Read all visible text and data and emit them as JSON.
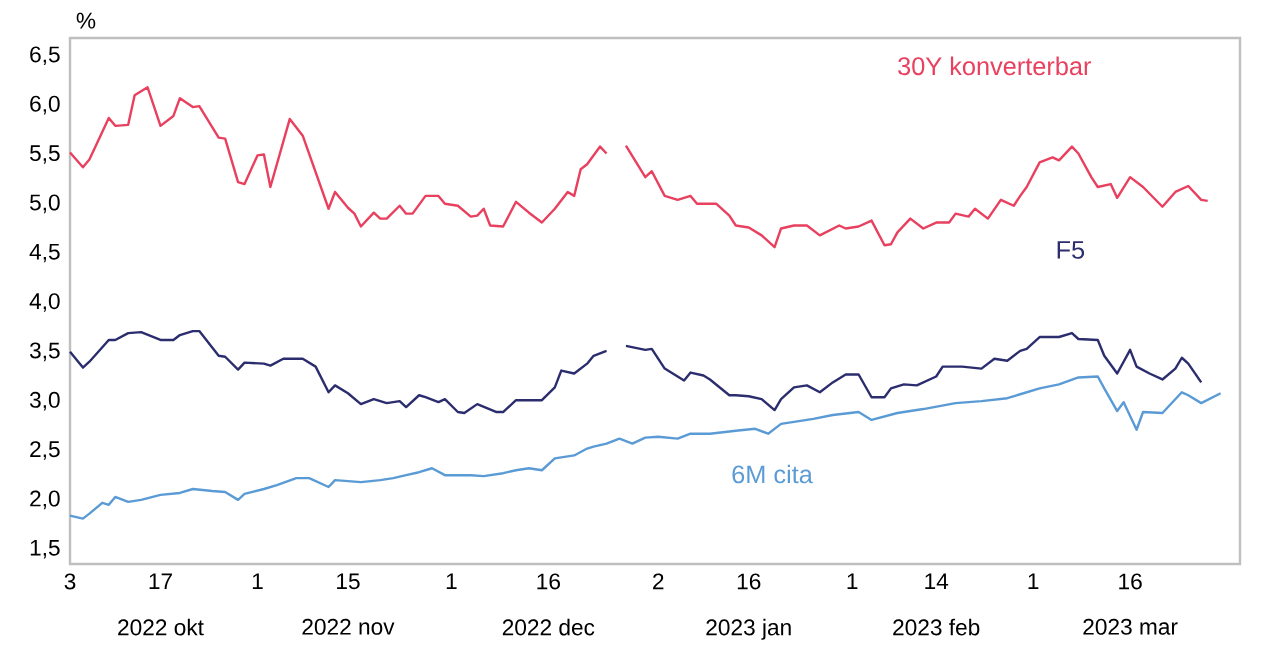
{
  "chart_data": {
    "type": "line",
    "ylabel": "%",
    "xlim": [
      "2022-10-03",
      "2023-04-02"
    ],
    "ylim": [
      1.35,
      6.68
    ],
    "xticks": [
      {
        "value": "2022-10-03",
        "label": "3"
      },
      {
        "value": "2022-10-17",
        "label": "17"
      },
      {
        "value": "2022-11-01",
        "label": "1"
      },
      {
        "value": "2022-11-15",
        "label": "15"
      },
      {
        "value": "2022-12-01",
        "label": "1"
      },
      {
        "value": "2022-12-16",
        "label": "16"
      },
      {
        "value": "2023-01-02",
        "label": "2"
      },
      {
        "value": "2023-01-16",
        "label": "16"
      },
      {
        "value": "2023-02-01",
        "label": "1"
      },
      {
        "value": "2023-02-14",
        "label": "14"
      },
      {
        "value": "2023-03-01",
        "label": "1"
      },
      {
        "value": "2023-03-16",
        "label": "16"
      }
    ],
    "yticks": [
      {
        "value": 1.5,
        "label": "1,5"
      },
      {
        "value": 2.0,
        "label": "2,0"
      },
      {
        "value": 2.5,
        "label": "2,5"
      },
      {
        "value": 3.0,
        "label": "3,0"
      },
      {
        "value": 3.5,
        "label": "3,5"
      },
      {
        "value": 4.0,
        "label": "4,0"
      },
      {
        "value": 4.5,
        "label": "4,5"
      },
      {
        "value": 5.0,
        "label": "5,0"
      },
      {
        "value": 5.5,
        "label": "5,5"
      },
      {
        "value": 6.0,
        "label": "6,0"
      },
      {
        "value": 6.5,
        "label": "6,5"
      }
    ],
    "annotations": [
      "2022 okt",
      "2022 nov",
      "2022 dec",
      "2023 jan",
      "2023 feb",
      "2023 mar"
    ],
    "series": [
      {
        "name": "30Y konverterbar",
        "color": "#e8405e",
        "x": [
          "2022-10-03",
          "2022-10-05",
          "2022-10-06",
          "2022-10-09",
          "2022-10-10",
          "2022-10-12",
          "2022-10-13",
          "2022-10-15",
          "2022-10-17",
          "2022-10-19",
          "2022-10-20",
          "2022-10-22",
          "2022-10-23",
          "2022-10-26",
          "2022-10-27",
          "2022-10-29",
          "2022-10-30",
          "2022-11-01",
          "2022-11-02",
          "2022-11-03",
          "2022-11-06",
          "2022-11-08",
          "2022-11-12",
          "2022-11-13",
          "2022-11-15",
          "2022-11-16",
          "2022-11-17",
          "2022-11-19",
          "2022-11-20",
          "2022-11-21",
          "2022-11-23",
          "2022-11-24",
          "2022-11-25",
          "2022-11-27",
          "2022-11-29",
          "2022-11-30",
          "2022-12-02",
          "2022-12-04",
          "2022-12-05",
          "2022-12-06",
          "2022-12-07",
          "2022-12-09",
          "2022-12-11",
          "2022-12-13",
          "2022-12-15",
          "2022-12-17",
          "2022-12-19",
          "2022-12-20",
          "2022-12-21",
          "2022-12-22",
          "2022-12-24",
          "2022-12-25",
          "2022-12-26",
          "2022-12-28",
          "2022-12-31",
          "2023-01-01",
          "2023-01-03",
          "2023-01-05",
          "2023-01-07",
          "2023-01-08",
          "2023-01-11",
          "2023-01-13",
          "2023-01-14",
          "2023-01-16",
          "2023-01-18",
          "2023-01-20",
          "2023-01-21",
          "2023-01-23",
          "2023-01-25",
          "2023-01-27",
          "2023-01-30",
          "2023-01-31",
          "2023-02-02",
          "2023-02-04",
          "2023-02-06",
          "2023-02-07",
          "2023-02-08",
          "2023-02-10",
          "2023-02-12",
          "2023-02-14",
          "2023-02-16",
          "2023-02-17",
          "2023-02-19",
          "2023-02-20",
          "2023-02-22",
          "2023-02-24",
          "2023-02-26",
          "2023-02-27",
          "2023-02-28",
          "2023-03-02",
          "2023-03-04",
          "2023-03-05",
          "2023-03-07",
          "2023-03-08",
          "2023-03-10",
          "2023-03-11",
          "2023-03-13",
          "2023-03-14",
          "2023-03-16",
          "2023-03-18",
          "2023-03-21",
          "2023-03-23",
          "2023-03-25",
          "2023-03-27",
          "2023-03-28"
        ],
        "values": [
          5.52,
          5.37,
          5.45,
          5.87,
          5.79,
          5.8,
          6.1,
          6.18,
          5.79,
          5.89,
          6.07,
          5.98,
          5.99,
          5.67,
          5.66,
          5.22,
          5.2,
          5.49,
          5.5,
          5.17,
          5.86,
          5.69,
          4.95,
          5.12,
          4.96,
          4.9,
          4.77,
          4.91,
          4.85,
          4.85,
          4.98,
          4.9,
          4.9,
          5.08,
          5.08,
          5.0,
          4.98,
          4.87,
          4.88,
          4.95,
          4.78,
          4.77,
          5.02,
          4.91,
          4.81,
          4.95,
          5.12,
          5.08,
          5.35,
          5.4,
          5.58,
          5.51,
          null,
          5.59,
          5.27,
          5.33,
          5.08,
          5.04,
          5.08,
          5.0,
          5.0,
          4.88,
          4.78,
          4.76,
          4.68,
          4.56,
          4.75,
          4.78,
          4.78,
          4.68,
          4.78,
          4.75,
          4.77,
          4.83,
          4.58,
          4.59,
          4.71,
          4.85,
          4.75,
          4.81,
          4.81,
          4.9,
          4.87,
          4.95,
          4.85,
          5.04,
          4.98,
          5.08,
          5.17,
          5.42,
          5.47,
          5.44,
          5.58,
          5.51,
          5.27,
          5.17,
          5.2,
          5.06,
          5.27,
          5.17,
          4.97,
          5.12,
          5.18,
          5.04,
          5.03
        ]
      },
      {
        "name": "F5",
        "color": "#2b2d6e",
        "x": [
          "2022-10-03",
          "2022-10-05",
          "2022-10-06",
          "2022-10-09",
          "2022-10-10",
          "2022-10-12",
          "2022-10-14",
          "2022-10-17",
          "2022-10-19",
          "2022-10-20",
          "2022-10-22",
          "2022-10-23",
          "2022-10-26",
          "2022-10-27",
          "2022-10-29",
          "2022-10-30",
          "2022-11-02",
          "2022-11-03",
          "2022-11-05",
          "2022-11-08",
          "2022-11-10",
          "2022-11-12",
          "2022-11-13",
          "2022-11-15",
          "2022-11-17",
          "2022-11-19",
          "2022-11-21",
          "2022-11-23",
          "2022-11-24",
          "2022-11-26",
          "2022-11-27",
          "2022-11-29",
          "2022-11-30",
          "2022-12-02",
          "2022-12-03",
          "2022-12-05",
          "2022-12-08",
          "2022-12-09",
          "2022-12-11",
          "2022-12-15",
          "2022-12-17",
          "2022-12-18",
          "2022-12-20",
          "2022-12-22",
          "2022-12-23",
          "2022-12-25",
          "2022-12-26",
          "2022-12-28",
          "2022-12-31",
          "2023-01-01",
          "2023-01-03",
          "2023-01-06",
          "2023-01-07",
          "2023-01-09",
          "2023-01-10",
          "2023-01-13",
          "2023-01-14",
          "2023-01-16",
          "2023-01-18",
          "2023-01-20",
          "2023-01-21",
          "2023-01-23",
          "2023-01-25",
          "2023-01-27",
          "2023-01-29",
          "2023-01-31",
          "2023-02-02",
          "2023-02-04",
          "2023-02-06",
          "2023-02-07",
          "2023-02-09",
          "2023-02-11",
          "2023-02-14",
          "2023-02-15",
          "2023-02-18",
          "2023-02-21",
          "2023-02-23",
          "2023-02-25",
          "2023-02-27",
          "2023-02-28",
          "2023-03-02",
          "2023-03-05",
          "2023-03-07",
          "2023-03-08",
          "2023-03-11",
          "2023-03-12",
          "2023-03-14",
          "2023-03-16",
          "2023-03-17",
          "2023-03-19",
          "2023-03-21",
          "2023-03-23",
          "2023-03-24",
          "2023-03-25",
          "2023-03-27"
        ],
        "values": [
          3.5,
          3.34,
          3.4,
          3.62,
          3.62,
          3.69,
          3.7,
          3.62,
          3.62,
          3.67,
          3.71,
          3.71,
          3.46,
          3.45,
          3.32,
          3.39,
          3.38,
          3.36,
          3.43,
          3.43,
          3.35,
          3.09,
          3.16,
          3.08,
          2.97,
          3.02,
          2.98,
          3.0,
          2.94,
          3.06,
          3.04,
          2.99,
          3.02,
          2.89,
          2.88,
          2.97,
          2.89,
          2.89,
          3.01,
          3.01,
          3.14,
          3.31,
          3.28,
          3.38,
          3.46,
          3.51,
          null,
          3.56,
          3.52,
          3.53,
          3.33,
          3.21,
          3.29,
          3.26,
          3.22,
          3.06,
          3.06,
          3.05,
          3.02,
          2.91,
          3.02,
          3.14,
          3.16,
          3.09,
          3.19,
          3.27,
          3.27,
          3.04,
          3.04,
          3.13,
          3.17,
          3.16,
          3.25,
          3.35,
          3.35,
          3.33,
          3.43,
          3.41,
          3.51,
          3.53,
          3.65,
          3.65,
          3.69,
          3.63,
          3.62,
          3.46,
          3.28,
          3.52,
          3.35,
          3.28,
          3.22,
          3.33,
          3.44,
          3.38,
          3.19
        ]
      },
      {
        "name": "6M cita",
        "color": "#5b9bd5",
        "x": [
          "2022-10-03",
          "2022-10-05",
          "2022-10-06",
          "2022-10-08",
          "2022-10-09",
          "2022-10-10",
          "2022-10-12",
          "2022-10-14",
          "2022-10-17",
          "2022-10-20",
          "2022-10-22",
          "2022-10-25",
          "2022-10-27",
          "2022-10-29",
          "2022-10-30",
          "2022-11-02",
          "2022-11-04",
          "2022-11-07",
          "2022-11-09",
          "2022-11-12",
          "2022-11-13",
          "2022-11-17",
          "2022-11-20",
          "2022-11-22",
          "2022-11-24",
          "2022-11-26",
          "2022-11-28",
          "2022-11-30",
          "2022-12-02",
          "2022-12-04",
          "2022-12-06",
          "2022-12-09",
          "2022-12-11",
          "2022-12-13",
          "2022-12-15",
          "2022-12-17",
          "2022-12-20",
          "2022-12-22",
          "2022-12-23",
          "2022-12-25",
          "2022-12-27",
          "2022-12-29",
          "2022-12-31",
          "2023-01-02",
          "2023-01-05",
          "2023-01-07",
          "2023-01-10",
          "2023-01-14",
          "2023-01-17",
          "2023-01-19",
          "2023-01-21",
          "2023-01-24",
          "2023-01-26",
          "2023-01-29",
          "2023-02-02",
          "2023-02-04",
          "2023-02-08",
          "2023-02-12",
          "2023-02-17",
          "2023-02-21",
          "2023-02-25",
          "2023-02-27",
          "2023-03-02",
          "2023-03-05",
          "2023-03-08",
          "2023-03-11",
          "2023-03-12",
          "2023-03-14",
          "2023-03-15",
          "2023-03-17",
          "2023-03-18",
          "2023-03-21",
          "2023-03-24",
          "2023-03-25",
          "2023-03-27",
          "2023-03-30"
        ],
        "values": [
          1.84,
          1.81,
          1.86,
          1.97,
          1.95,
          2.03,
          1.98,
          2.0,
          2.05,
          2.07,
          2.11,
          2.09,
          2.08,
          2.0,
          2.06,
          2.11,
          2.15,
          2.22,
          2.22,
          2.13,
          2.2,
          2.18,
          2.2,
          2.22,
          2.25,
          2.28,
          2.32,
          2.25,
          2.25,
          2.25,
          2.24,
          2.27,
          2.3,
          2.32,
          2.3,
          2.42,
          2.45,
          2.52,
          2.54,
          2.57,
          2.62,
          2.57,
          2.63,
          2.64,
          2.62,
          2.67,
          2.67,
          2.7,
          2.72,
          2.67,
          2.77,
          2.8,
          2.82,
          2.86,
          2.89,
          2.81,
          2.88,
          2.92,
          2.98,
          3.0,
          3.03,
          3.07,
          3.13,
          3.17,
          3.24,
          3.25,
          3.13,
          2.9,
          2.99,
          2.71,
          2.89,
          2.88,
          3.09,
          3.06,
          2.98,
          3.08
        ]
      }
    ]
  }
}
